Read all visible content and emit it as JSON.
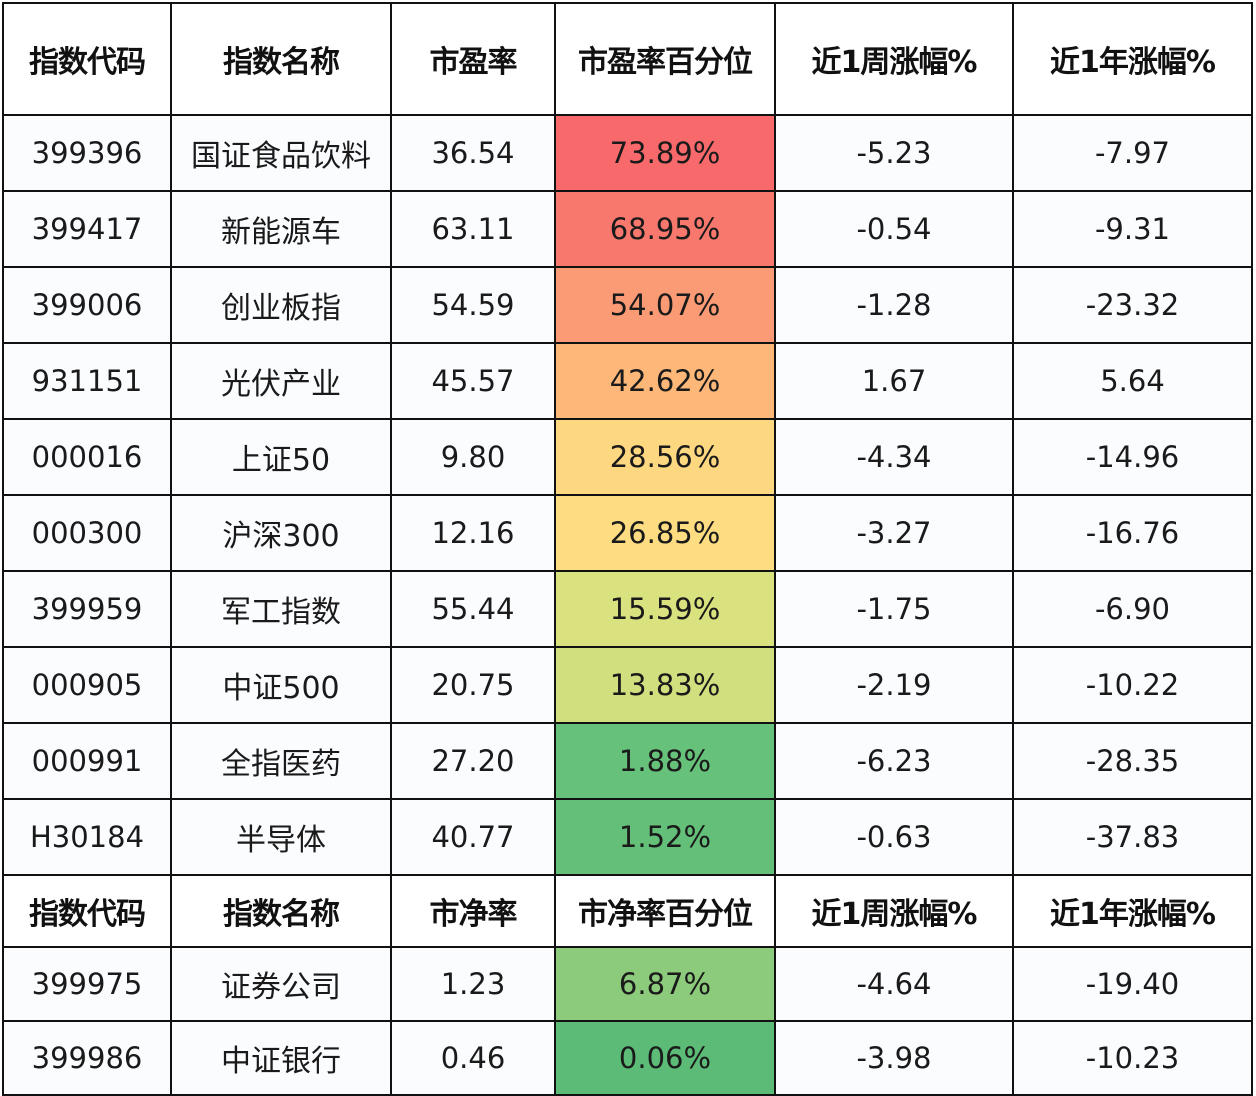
{
  "pe_table": {
    "headers": [
      "指数代码",
      "指数名称",
      "市盈率",
      "市盈率百分位",
      "近1周涨幅%",
      "近1年涨幅%"
    ],
    "rows": [
      {
        "code": "399396",
        "name": "国证食品饮料",
        "ratio": "36.54",
        "percentile": "73.89%",
        "week_change": "-5.23",
        "year_change": "-7.97",
        "color": "#f8696b"
      },
      {
        "code": "399417",
        "name": "新能源车",
        "ratio": "63.11",
        "percentile": "68.95%",
        "week_change": "-0.54",
        "year_change": "-9.31",
        "color": "#f9786e"
      },
      {
        "code": "399006",
        "name": "创业板指",
        "ratio": "54.59",
        "percentile": "54.07%",
        "week_change": "-1.28",
        "year_change": "-23.32",
        "color": "#fb9b75"
      },
      {
        "code": "931151",
        "name": "光伏产业",
        "ratio": "45.57",
        "percentile": "42.62%",
        "week_change": "1.67",
        "year_change": "5.64",
        "color": "#fcb779"
      },
      {
        "code": "000016",
        "name": "上证50",
        "ratio": "9.80",
        "percentile": "28.56%",
        "week_change": "-4.34",
        "year_change": "-14.96",
        "color": "#fed880"
      },
      {
        "code": "000300",
        "name": "沪深300",
        "ratio": "12.16",
        "percentile": "26.85%",
        "week_change": "-3.27",
        "year_change": "-16.76",
        "color": "#fedc81"
      },
      {
        "code": "399959",
        "name": "军工指数",
        "ratio": "55.44",
        "percentile": "15.59%",
        "week_change": "-1.75",
        "year_change": "-6.90",
        "color": "#d9e27f"
      },
      {
        "code": "000905",
        "name": "中证500",
        "ratio": "20.75",
        "percentile": "13.83%",
        "week_change": "-2.19",
        "year_change": "-10.22",
        "color": "#d2df7e"
      },
      {
        "code": "000991",
        "name": "全指医药",
        "ratio": "27.20",
        "percentile": "1.88%",
        "week_change": "-6.23",
        "year_change": "-28.35",
        "color": "#66c17a"
      },
      {
        "code": "H30184",
        "name": "半导体",
        "ratio": "40.77",
        "percentile": "1.52%",
        "week_change": "-0.63",
        "year_change": "-37.83",
        "color": "#64c079"
      }
    ]
  },
  "pb_table": {
    "headers": [
      "指数代码",
      "指数名称",
      "市净率",
      "市净率百分位",
      "近1周涨幅%",
      "近1年涨幅%"
    ],
    "rows": [
      {
        "code": "399975",
        "name": "证券公司",
        "ratio": "1.23",
        "percentile": "6.87%",
        "week_change": "-4.64",
        "year_change": "-19.40",
        "color": "#8ccb7b"
      },
      {
        "code": "399986",
        "name": "中证银行",
        "ratio": "0.46",
        "percentile": "0.06%",
        "week_change": "-3.98",
        "year_change": "-10.23",
        "color": "#5cbc77"
      }
    ]
  },
  "colors": {
    "border": "#111111",
    "high_percentile": "#f8696b",
    "mid_percentile": "#fedc81",
    "low_percentile": "#5cbc77"
  }
}
